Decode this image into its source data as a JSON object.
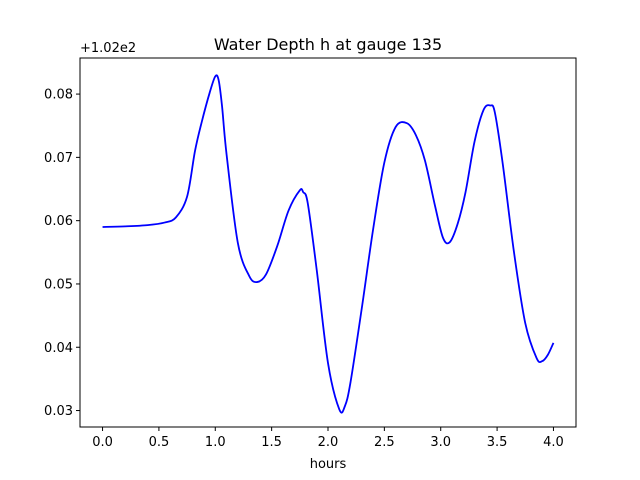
{
  "chart_data": {
    "type": "line",
    "title": "Water Depth h at gauge 135",
    "xlabel": "hours",
    "ylabel": "",
    "y_offset_label": "+1.02e2",
    "xlim": [
      -0.2,
      4.2
    ],
    "ylim": [
      0.0274,
      0.0857
    ],
    "x_ticks": [
      0.0,
      0.5,
      1.0,
      1.5,
      2.0,
      2.5,
      3.0,
      3.5,
      4.0
    ],
    "x_tick_labels": [
      "0.0",
      "0.5",
      "1.0",
      "1.5",
      "2.0",
      "2.5",
      "3.0",
      "3.5",
      "4.0"
    ],
    "y_ticks": [
      0.03,
      0.04,
      0.05,
      0.06,
      0.07,
      0.08
    ],
    "y_tick_labels": [
      "0.03",
      "0.04",
      "0.05",
      "0.06",
      "0.07",
      "0.08"
    ],
    "grid": false,
    "legend": "none",
    "series": [
      {
        "color": "#0000ff",
        "x": [
          0.0,
          0.2,
          0.4,
          0.55,
          0.65,
          0.75,
          0.82,
          0.88,
          0.95,
          1.0,
          1.03,
          1.06,
          1.1,
          1.2,
          1.3,
          1.37,
          1.45,
          1.55,
          1.65,
          1.75,
          1.78,
          1.82,
          1.9,
          2.0,
          2.1,
          2.15,
          2.2,
          2.3,
          2.4,
          2.5,
          2.6,
          2.7,
          2.78,
          2.86,
          2.95,
          3.02,
          3.08,
          3.15,
          3.22,
          3.3,
          3.38,
          3.44,
          3.48,
          3.55,
          3.65,
          3.75,
          3.85,
          3.9,
          3.95,
          4.0
        ],
        "y": [
          0.059,
          0.0591,
          0.0593,
          0.0597,
          0.0605,
          0.0638,
          0.071,
          0.0756,
          0.0802,
          0.0828,
          0.0822,
          0.0781,
          0.0705,
          0.0565,
          0.0513,
          0.0503,
          0.0515,
          0.056,
          0.0616,
          0.0648,
          0.0645,
          0.0628,
          0.0522,
          0.0375,
          0.0302,
          0.0307,
          0.0345,
          0.0462,
          0.0586,
          0.0692,
          0.0748,
          0.0754,
          0.0735,
          0.0695,
          0.0623,
          0.0573,
          0.0566,
          0.0595,
          0.0645,
          0.0725,
          0.0775,
          0.0782,
          0.0771,
          0.069,
          0.055,
          0.0438,
          0.0383,
          0.0378,
          0.0388,
          0.0407
        ]
      }
    ]
  }
}
